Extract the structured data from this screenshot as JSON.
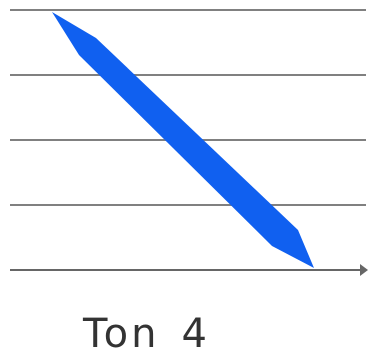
{
  "tone": {
    "label": "Ton",
    "number": "4",
    "stroke_color": "#1060f0",
    "line_color": "#808080",
    "axis_color": "#666666"
  }
}
